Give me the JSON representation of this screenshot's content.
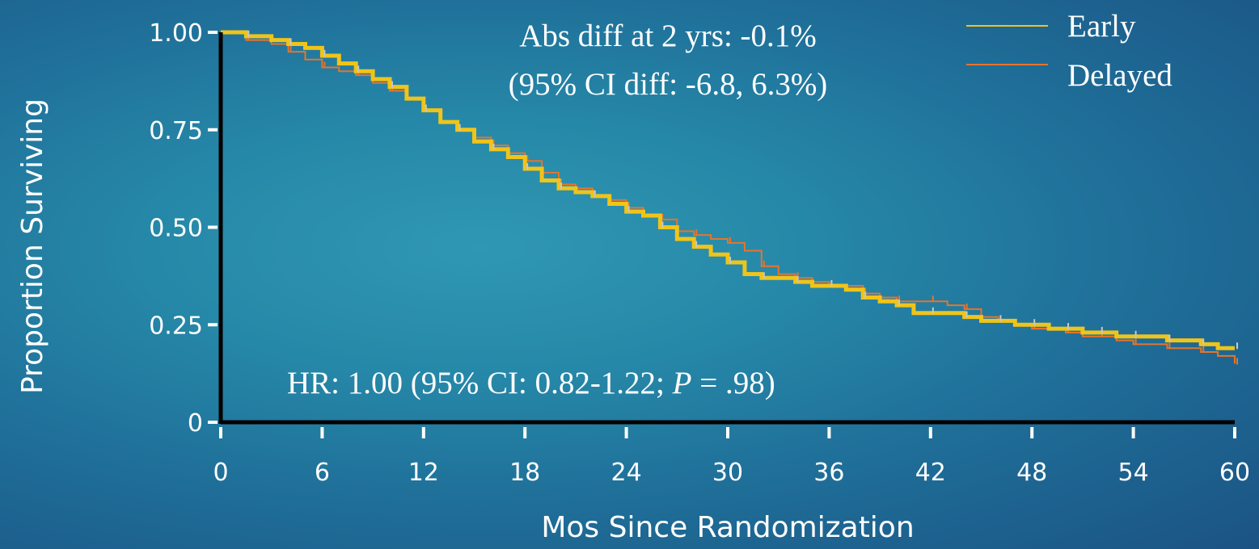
{
  "chart_data": {
    "type": "line",
    "subtype": "kaplan-meier step curve",
    "title": "",
    "xlabel": "Mos Since Randomization",
    "ylabel": "Proportion Surviving",
    "xlim": [
      0,
      60
    ],
    "ylim": [
      0,
      1
    ],
    "x_ticks": [
      0,
      6,
      12,
      18,
      24,
      30,
      36,
      42,
      48,
      54,
      60
    ],
    "x_tick_labels": [
      "0",
      "6",
      "12",
      "18",
      "24",
      "30",
      "36",
      "42",
      "48",
      "54",
      "60"
    ],
    "y_ticks": [
      0,
      0.25,
      0.5,
      0.75,
      1.0
    ],
    "y_tick_labels": [
      "0",
      "0.25",
      "0.50",
      "0.75",
      "1.00"
    ],
    "grid": false,
    "legend_position": "top-right",
    "annotations": {
      "abs_diff_line1": "Abs diff at 2 yrs: -0.1%",
      "abs_diff_line2": "(95% CI diff: -6.8, 6.3%)",
      "hr_prefix": "HR: 1.00 (95% CI: 0.82-1.22; ",
      "hr_p_italic": "P",
      "hr_suffix": " = .98)"
    },
    "series": [
      {
        "name": "Early",
        "color": "#f0c419",
        "x": [
          0,
          1.5,
          3,
          4,
          5,
          6,
          7,
          8,
          9,
          10,
          11,
          12,
          13,
          14,
          15,
          16,
          17,
          18,
          19,
          20,
          21,
          22,
          23,
          24,
          25,
          26,
          27,
          28,
          29,
          30,
          31,
          32,
          33,
          34,
          35,
          36,
          37,
          38,
          39,
          40,
          41,
          42,
          43,
          44,
          45,
          46,
          47,
          48,
          49,
          50,
          51,
          52,
          53,
          54,
          55,
          56,
          57,
          58,
          59,
          60
        ],
        "y": [
          1.0,
          0.99,
          0.98,
          0.97,
          0.96,
          0.94,
          0.92,
          0.9,
          0.88,
          0.86,
          0.83,
          0.8,
          0.77,
          0.75,
          0.72,
          0.7,
          0.68,
          0.65,
          0.62,
          0.6,
          0.59,
          0.58,
          0.56,
          0.54,
          0.53,
          0.5,
          0.47,
          0.45,
          0.43,
          0.41,
          0.38,
          0.37,
          0.37,
          0.36,
          0.35,
          0.35,
          0.34,
          0.32,
          0.31,
          0.3,
          0.28,
          0.28,
          0.28,
          0.27,
          0.26,
          0.26,
          0.25,
          0.25,
          0.24,
          0.24,
          0.23,
          0.23,
          0.22,
          0.22,
          0.22,
          0.21,
          0.21,
          0.2,
          0.19,
          0.19
        ]
      },
      {
        "name": "Delayed",
        "color": "#e8742a",
        "x": [
          0,
          1.5,
          3,
          4,
          5,
          6,
          7,
          8,
          9,
          10,
          11,
          12,
          13,
          14,
          15,
          16,
          17,
          18,
          19,
          20,
          21,
          22,
          23,
          24,
          25,
          26,
          27,
          28,
          29,
          30,
          31,
          32,
          33,
          34,
          35,
          36,
          37,
          38,
          39,
          40,
          41,
          42,
          43,
          44,
          45,
          46,
          47,
          48,
          49,
          50,
          51,
          52,
          53,
          54,
          55,
          56,
          57,
          58,
          59,
          60
        ],
        "y": [
          1.0,
          0.98,
          0.97,
          0.95,
          0.93,
          0.91,
          0.9,
          0.89,
          0.87,
          0.85,
          0.83,
          0.8,
          0.77,
          0.75,
          0.73,
          0.71,
          0.69,
          0.67,
          0.64,
          0.61,
          0.6,
          0.58,
          0.57,
          0.55,
          0.53,
          0.52,
          0.49,
          0.48,
          0.47,
          0.46,
          0.44,
          0.4,
          0.38,
          0.37,
          0.36,
          0.35,
          0.35,
          0.33,
          0.32,
          0.31,
          0.31,
          0.31,
          0.3,
          0.29,
          0.27,
          0.26,
          0.25,
          0.24,
          0.24,
          0.23,
          0.22,
          0.22,
          0.21,
          0.2,
          0.2,
          0.19,
          0.19,
          0.18,
          0.17,
          0.15
        ]
      }
    ]
  }
}
